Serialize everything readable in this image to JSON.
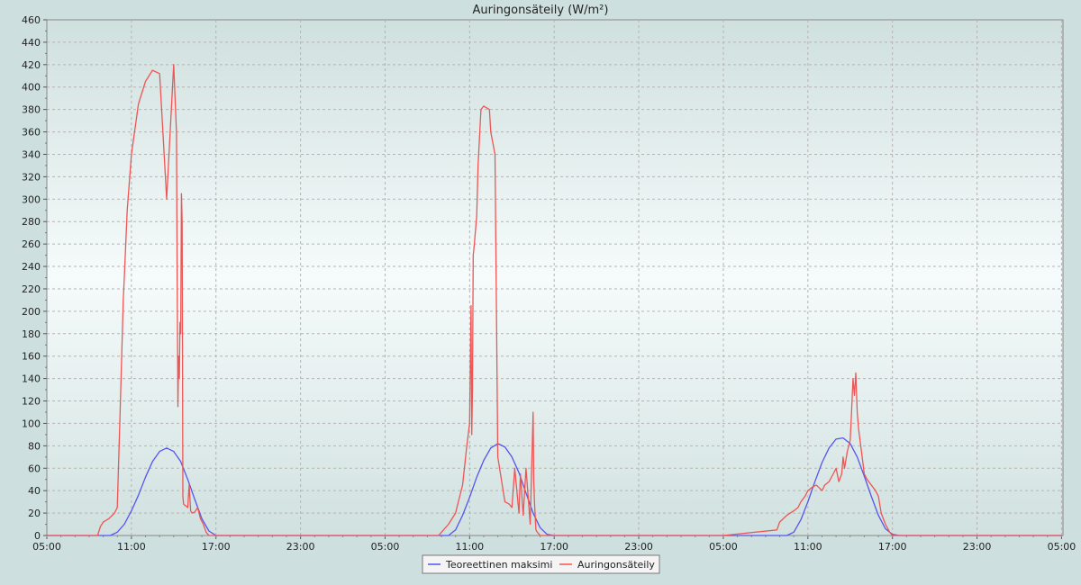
{
  "chart_data": {
    "type": "line",
    "title": "Auringonsäteily (W/m²)",
    "xlabel": "",
    "ylabel": "",
    "ylim": [
      0,
      460
    ],
    "y_major_step": 20,
    "y_tick_labels": [
      "0",
      "20",
      "40",
      "60",
      "80",
      "100",
      "120",
      "140",
      "160",
      "180",
      "200",
      "220",
      "240",
      "260",
      "280",
      "300",
      "320",
      "340",
      "360",
      "380",
      "400",
      "420",
      "440",
      "460"
    ],
    "xlim": [
      5,
      77.1
    ],
    "x_tick_values": [
      5,
      11,
      17,
      23,
      29,
      35,
      41,
      47,
      53,
      59,
      65,
      71,
      77
    ],
    "x_tick_labels": [
      "05:00",
      "11:00",
      "17:00",
      "23:00",
      "05:00",
      "11:00",
      "17:00",
      "23:00",
      "05:00",
      "11:00",
      "17:00",
      "23:00",
      "05:00"
    ],
    "grid": true,
    "legend_position": "bottom-center",
    "series": [
      {
        "name": "Teoreettinen maksimi",
        "color": "#5555ee",
        "x": [
          5,
          8.9,
          9.5,
          10,
          10.5,
          11,
          11.5,
          12,
          12.5,
          13,
          13.5,
          14,
          14.5,
          15,
          15.5,
          16,
          16.5,
          17,
          17.5,
          23,
          29,
          32.9,
          33.5,
          34,
          34.5,
          35,
          35.5,
          36,
          36.5,
          37,
          37.5,
          38,
          38.5,
          39,
          39.5,
          40,
          40.5,
          41,
          41.5,
          47,
          53,
          56.9,
          57.5,
          58,
          58.5,
          59,
          59.5,
          60,
          60.5,
          61,
          61.5,
          62,
          62.5,
          63,
          63.5,
          64,
          64.5,
          65,
          65.5,
          71,
          77
        ],
        "values": [
          0,
          0,
          0,
          3,
          10,
          22,
          36,
          52,
          66,
          75,
          78,
          75,
          66,
          50,
          32,
          15,
          4,
          0,
          0,
          0,
          0,
          0,
          0,
          5,
          18,
          34,
          52,
          67,
          78,
          82,
          79,
          70,
          56,
          38,
          20,
          7,
          1,
          0,
          0,
          0,
          0,
          0,
          0,
          3,
          14,
          30,
          48,
          65,
          78,
          86,
          87,
          82,
          70,
          53,
          35,
          18,
          6,
          1,
          0,
          0,
          0
        ]
      },
      {
        "name": "Auringonsäteily",
        "color": "#ee5555",
        "x": [
          5,
          8.6,
          8.8,
          9,
          9.4,
          9.8,
          10,
          10.2,
          10.4,
          10.42,
          10.5,
          10.7,
          11,
          11.5,
          12,
          12.5,
          13,
          13.5,
          14,
          14.2,
          14.25,
          14.3,
          14.35,
          14.4,
          14.45,
          14.5,
          14.55,
          14.6,
          14.65,
          14.7,
          14.8,
          14.9,
          15,
          15.1,
          15.2,
          15.3,
          15.5,
          15.7,
          15.9,
          16.1,
          16.3,
          16.5,
          16.7,
          17,
          23,
          29,
          32.8,
          33,
          33.5,
          34,
          34.2,
          34.5,
          34.8,
          35,
          35.1,
          35.15,
          35.2,
          35.25,
          35.3,
          35.35,
          35.4,
          35.5,
          35.6,
          35.8,
          36,
          36.4,
          36.5,
          36.8,
          37,
          37.5,
          37.8,
          38,
          38.2,
          38.5,
          38.6,
          38.8,
          39,
          39.3,
          39.5,
          39.55,
          39.6,
          39.7,
          39.8,
          40,
          40.2,
          40.5,
          41,
          47,
          53,
          56.8,
          57,
          57.5,
          58,
          58.3,
          58.5,
          58.8,
          59,
          59.3,
          59.6,
          60,
          60.2,
          60.5,
          60.8,
          61,
          61.2,
          61.4,
          61.5,
          61.6,
          61.8,
          62,
          62.1,
          62.2,
          62.3,
          62.4,
          62.5,
          62.6,
          62.8,
          63,
          63.2,
          63.5,
          63.8,
          64,
          64.2,
          64.5,
          64.8,
          65,
          65.5,
          71,
          77
        ],
        "values": [
          0,
          0,
          8,
          12,
          15,
          20,
          25,
          112,
          200,
          210,
          230,
          290,
          340,
          385,
          405,
          415,
          412,
          300,
          420,
          360,
          225,
          115,
          160,
          140,
          190,
          180,
          305,
          280,
          35,
          28,
          27,
          26,
          25,
          45,
          22,
          20,
          21,
          25,
          15,
          10,
          3,
          0,
          0,
          0,
          0,
          0,
          0,
          3,
          10,
          20,
          30,
          45,
          80,
          100,
          205,
          90,
          130,
          250,
          255,
          262,
          270,
          285,
          330,
          380,
          383,
          380,
          360,
          340,
          70,
          30,
          28,
          25,
          60,
          20,
          55,
          18,
          60,
          10,
          110,
          50,
          30,
          5,
          3,
          0,
          0,
          0,
          0,
          0,
          0,
          5,
          12,
          18,
          22,
          25,
          30,
          35,
          40,
          43,
          45,
          40,
          45,
          48,
          55,
          60,
          48,
          55,
          70,
          60,
          75,
          85,
          110,
          140,
          125,
          145,
          110,
          95,
          75,
          55,
          50,
          45,
          40,
          35,
          20,
          10,
          3,
          0,
          0,
          0,
          0
        ]
      }
    ]
  }
}
